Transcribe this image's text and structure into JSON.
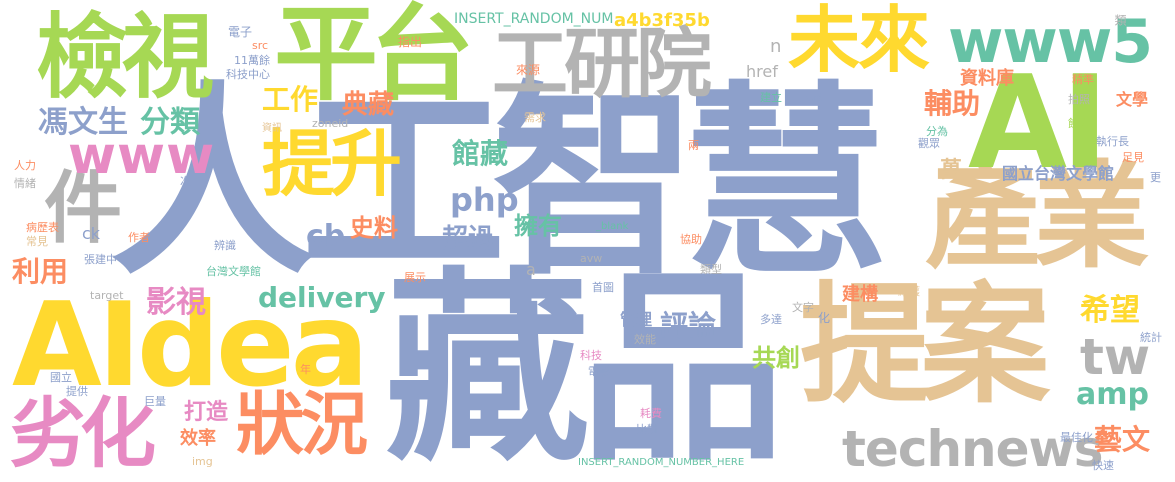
{
  "palette": {
    "blue": "#8da0cb",
    "green": "#a6d854",
    "yellow": "#ffd92f",
    "tan": "#e5c494",
    "gray": "#b3b3b3",
    "teal": "#66c2a5",
    "orange": "#fc8d62",
    "pink": "#e78ac3"
  },
  "words": [
    {
      "text": "人工智慧",
      "color": "#8da0cb"
    },
    {
      "text": "藏品",
      "color": "#8da0cb"
    },
    {
      "text": "AIdea",
      "color": "#ffd92f"
    },
    {
      "text": "提案",
      "color": "#e5c494"
    },
    {
      "text": "產業",
      "color": "#e5c494"
    },
    {
      "text": "AI",
      "color": "#a6d854"
    },
    {
      "text": "平台",
      "color": "#a6d854"
    },
    {
      "text": "檢視",
      "color": "#a6d854"
    },
    {
      "text": "工研院",
      "color": "#b3b3b3"
    },
    {
      "text": "未來",
      "color": "#ffd92f"
    },
    {
      "text": "www5",
      "color": "#66c2a5"
    },
    {
      "text": "件",
      "color": "#b3b3b3"
    },
    {
      "text": "提升",
      "color": "#ffd92f"
    },
    {
      "text": "劣化",
      "color": "#e78ac3"
    },
    {
      "text": "狀況",
      "color": "#fc8d62"
    },
    {
      "text": "technews",
      "color": "#b3b3b3"
    },
    {
      "text": "www",
      "color": "#e78ac3"
    },
    {
      "text": "tw",
      "color": "#b3b3b3"
    },
    {
      "text": "馮文生",
      "color": "#8da0cb"
    },
    {
      "text": "分類",
      "color": "#66c2a5"
    },
    {
      "text": "工作",
      "color": "#ffd92f"
    },
    {
      "text": "典藏",
      "color": "#fc8d62"
    },
    {
      "text": "館藏",
      "color": "#66c2a5"
    },
    {
      "text": "php",
      "color": "#8da0cb"
    },
    {
      "text": "cb",
      "color": "#8da0cb"
    },
    {
      "text": "史料",
      "color": "#fc8d62"
    },
    {
      "text": "擁有",
      "color": "#66c2a5"
    },
    {
      "text": "超過",
      "color": "#8da0cb"
    },
    {
      "text": "利用",
      "color": "#fc8d62"
    },
    {
      "text": "影視",
      "color": "#e78ac3"
    },
    {
      "text": "delivery",
      "color": "#66c2a5"
    },
    {
      "text": "評論",
      "color": "#8da0cb"
    },
    {
      "text": "輔助",
      "color": "#fc8d62"
    },
    {
      "text": "希望",
      "color": "#ffd92f"
    },
    {
      "text": "amp",
      "color": "#66c2a5"
    },
    {
      "text": "藝文",
      "color": "#fc8d62"
    },
    {
      "text": "打造",
      "color": "#e78ac3"
    },
    {
      "text": "效率",
      "color": "#fc8d62"
    },
    {
      "text": "共創",
      "color": "#a6d854"
    },
    {
      "text": "資料庫",
      "color": "#fc8d62"
    },
    {
      "text": "國立台灣文學館",
      "color": "#8da0cb"
    },
    {
      "text": "萬",
      "color": "#e5c494"
    },
    {
      "text": "建構",
      "color": "#fc8d62"
    },
    {
      "text": "管理",
      "color": "#8da0cb"
    },
    {
      "text": "a4b3f35b",
      "color": "#ffd92f"
    },
    {
      "text": "INSERT_RANDOM_NUM",
      "color": "#66c2a5"
    },
    {
      "text": "href",
      "color": "#b3b3b3"
    },
    {
      "text": "n",
      "color": "#b3b3b3"
    },
    {
      "text": "文學",
      "color": "#fc8d62"
    },
    {
      "text": "ck",
      "color": "#8da0cb"
    },
    {
      "text": "a",
      "color": "#b3b3b3"
    },
    {
      "text": "電子",
      "color": "#8da0cb"
    },
    {
      "text": "src",
      "color": "#fc8d62"
    },
    {
      "text": "11萬餘",
      "color": "#8da0cb"
    },
    {
      "text": "科技中心",
      "color": "#8da0cb"
    },
    {
      "text": "指出",
      "color": "#fc8d62"
    },
    {
      "text": "來源",
      "color": "#fc8d62"
    },
    {
      "text": "需求",
      "color": "#e5c494"
    },
    {
      "text": "資訊",
      "color": "#e5c494"
    },
    {
      "text": "zoneid",
      "color": "#b3b3b3"
    },
    {
      "text": "人力",
      "color": "#fc8d62"
    },
    {
      "text": "情緒",
      "color": "#b3b3b3"
    },
    {
      "text": "次",
      "color": "#8da0cb"
    },
    {
      "text": "病歷表",
      "color": "#fc8d62"
    },
    {
      "text": "常見",
      "color": "#e5c494"
    },
    {
      "text": "作者",
      "color": "#fc8d62"
    },
    {
      "text": "張建中",
      "color": "#8da0cb"
    },
    {
      "text": "辨識",
      "color": "#8da0cb"
    },
    {
      "text": "台灣文學館",
      "color": "#66c2a5"
    },
    {
      "text": "target",
      "color": "#b3b3b3"
    },
    {
      "text": "展示",
      "color": "#fc8d62"
    },
    {
      "text": "_blank",
      "color": "#66c2a5"
    },
    {
      "text": "avw",
      "color": "#b3b3b3"
    },
    {
      "text": "協助",
      "color": "#fc8d62"
    },
    {
      "text": "類型",
      "color": "#b3b3b3"
    },
    {
      "text": "首圖",
      "color": "#8da0cb"
    },
    {
      "text": "兩",
      "color": "#fc8d62"
    },
    {
      "text": "建立",
      "color": "#66c2a5"
    },
    {
      "text": "入藏",
      "color": "#8da0cb"
    },
    {
      "text": "拍照",
      "color": "#b3b3b3"
    },
    {
      "text": "精準",
      "color": "#fc8d62"
    },
    {
      "text": "類",
      "color": "#b3b3b3"
    },
    {
      "text": "分為",
      "color": "#66c2a5"
    },
    {
      "text": "館方",
      "color": "#a6d854"
    },
    {
      "text": "觀眾",
      "color": "#8da0cb"
    },
    {
      "text": "執行長",
      "color": "#8da0cb"
    },
    {
      "text": "足見",
      "color": "#fc8d62"
    },
    {
      "text": "更",
      "color": "#8da0cb"
    },
    {
      "text": "國立",
      "color": "#8da0cb"
    },
    {
      "text": "提供",
      "color": "#8da0cb"
    },
    {
      "text": "巨量",
      "color": "#8da0cb"
    },
    {
      "text": "img",
      "color": "#e5c494"
    },
    {
      "text": "年",
      "color": "#fc8d62"
    },
    {
      "text": "科技",
      "color": "#e78ac3"
    },
    {
      "text": "電影",
      "color": "#8da0cb"
    },
    {
      "text": "效能",
      "color": "#b3b3b3"
    },
    {
      "text": "多達",
      "color": "#8da0cb"
    },
    {
      "text": "文字",
      "color": "#b3b3b3"
    },
    {
      "text": "化",
      "color": "#8da0cb"
    },
    {
      "text": "維護",
      "color": "#e5c494"
    },
    {
      "text": "統計",
      "color": "#8da0cb"
    },
    {
      "text": "耗費",
      "color": "#e78ac3"
    },
    {
      "text": "比對",
      "color": "#8da0cb"
    },
    {
      "text": "最佳化",
      "color": "#8da0cb"
    },
    {
      "text": "快速",
      "color": "#8da0cb"
    },
    {
      "text": "INSERT_RANDOM_NUMBER_HERE",
      "color": "#66c2a5"
    }
  ]
}
